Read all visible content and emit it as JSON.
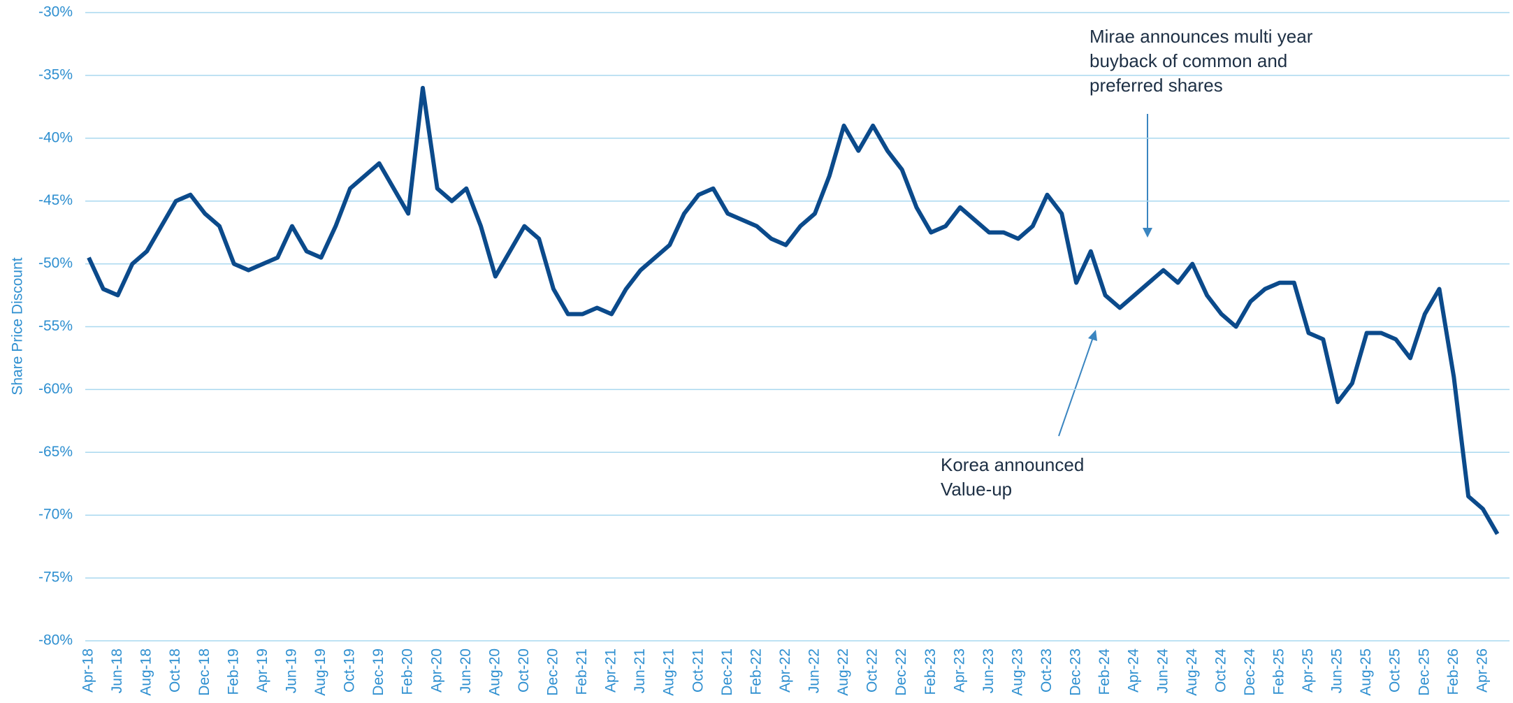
{
  "chart_data": {
    "type": "line",
    "y_label": "Share Price Discount",
    "categories": [
      "Apr-18",
      null,
      "Jun-18",
      null,
      "Aug-18",
      null,
      "Oct-18",
      null,
      "Dec-18",
      null,
      "Feb-19",
      null,
      "Apr-19",
      null,
      "Jun-19",
      null,
      "Aug-19",
      null,
      "Oct-19",
      null,
      "Dec-19",
      null,
      "Feb-20",
      null,
      "Apr-20",
      null,
      "Jun-20",
      null,
      "Aug-20",
      null,
      "Oct-20",
      null,
      "Dec-20",
      null,
      "Feb-21",
      null,
      "Apr-21",
      null,
      "Jun-21",
      null,
      "Aug-21",
      null,
      "Oct-21",
      null,
      "Dec-21",
      null,
      "Feb-22",
      null,
      "Apr-22",
      null,
      "Jun-22",
      null,
      "Aug-22",
      null,
      "Oct-22",
      null,
      "Dec-22",
      null,
      "Feb-23",
      null,
      "Apr-23",
      null,
      "Jun-23",
      null,
      "Aug-23",
      null,
      "Oct-23",
      null,
      "Dec-23",
      null,
      "Feb-24",
      null,
      "Apr-24",
      null,
      "Jun-24",
      null,
      "Aug-24",
      null,
      "Oct-24",
      null,
      "Dec-24",
      null,
      "Feb-25",
      null,
      "Apr-25",
      null,
      "Jun-25",
      null,
      "Aug-25",
      null,
      "Oct-25",
      null,
      "Dec-25",
      null,
      "Feb-26",
      null,
      "Apr-26",
      null
    ],
    "series": [
      {
        "color": "#0b4a8b",
        "values": [
          -49.5,
          -52,
          -52.5,
          -50,
          -49,
          -47,
          -45,
          -44.5,
          -46,
          -47,
          -50,
          -50.5,
          -50,
          -49.5,
          -47,
          -49,
          -49.5,
          -47,
          -44,
          -43,
          -42,
          -44,
          -46,
          -36,
          -44,
          -45,
          -44,
          -47,
          -51,
          -49,
          -47,
          -48,
          -52,
          -54,
          -54,
          -53.5,
          -54,
          -52,
          -50.5,
          -49.5,
          -48.5,
          -46,
          -44.5,
          -44,
          -46,
          -46.5,
          -47,
          -48,
          -48.5,
          -47,
          -46,
          -43,
          -39,
          -41,
          -39,
          -41,
          -42.5,
          -45.5,
          -47.5,
          -47,
          -45.5,
          -46.5,
          -47.5,
          -47.5,
          -48,
          -47,
          -44.5,
          -46,
          -51.5,
          -49,
          -52.5,
          -53.5,
          -52.5,
          -51.5,
          -50.5,
          -51.5,
          -50,
          -52.5,
          -54,
          -55,
          -53,
          -52,
          -51.5,
          -51.5,
          -55.5,
          -56,
          -61,
          -59.5,
          -55.5,
          -55.5,
          -56,
          -57.5,
          -54,
          -52,
          -59,
          -68.5,
          -69.5,
          -71.5
        ]
      }
    ],
    "ylim": [
      -80,
      -30
    ],
    "yticks": [
      {
        "value": -30,
        "label": "-30%"
      },
      {
        "value": -35,
        "label": "-35%"
      },
      {
        "value": -40,
        "label": "-40%"
      },
      {
        "value": -45,
        "label": "-45%"
      },
      {
        "value": -50,
        "label": "-50%"
      },
      {
        "value": -55,
        "label": "-55%"
      },
      {
        "value": -60,
        "label": "-60%"
      },
      {
        "value": -65,
        "label": "-65%"
      },
      {
        "value": -70,
        "label": "-70%"
      },
      {
        "value": -75,
        "label": "-75%"
      },
      {
        "value": -80,
        "label": "-80%"
      }
    ],
    "grid": true,
    "annotations": [
      {
        "lines": [
          "Mirae announces multi year",
          "buyback of common and",
          "preferred shares"
        ]
      },
      {
        "lines": [
          "Korea announced",
          "Value-up"
        ]
      }
    ]
  }
}
